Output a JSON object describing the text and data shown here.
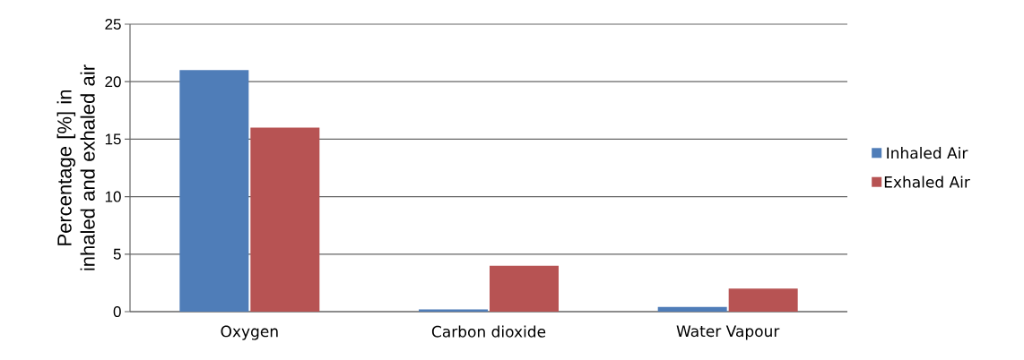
{
  "chart_data": {
    "type": "bar",
    "ylabel": "Percentage [%] in inhaled and exhaled air",
    "categories": [
      "Oxygen",
      "Carbon dioxide",
      "Water Vapour"
    ],
    "series": [
      {
        "name": "Inhaled Air",
        "color": "#4f7db8",
        "values": [
          21,
          0.2,
          0.4
        ]
      },
      {
        "name": "Exhaled Air",
        "color": "#b75353",
        "values": [
          16,
          4,
          2
        ]
      }
    ],
    "ylim": [
      0,
      25
    ],
    "yticks": [
      0,
      5,
      10,
      15,
      20,
      25
    ],
    "grid": "y",
    "legend": "right"
  }
}
